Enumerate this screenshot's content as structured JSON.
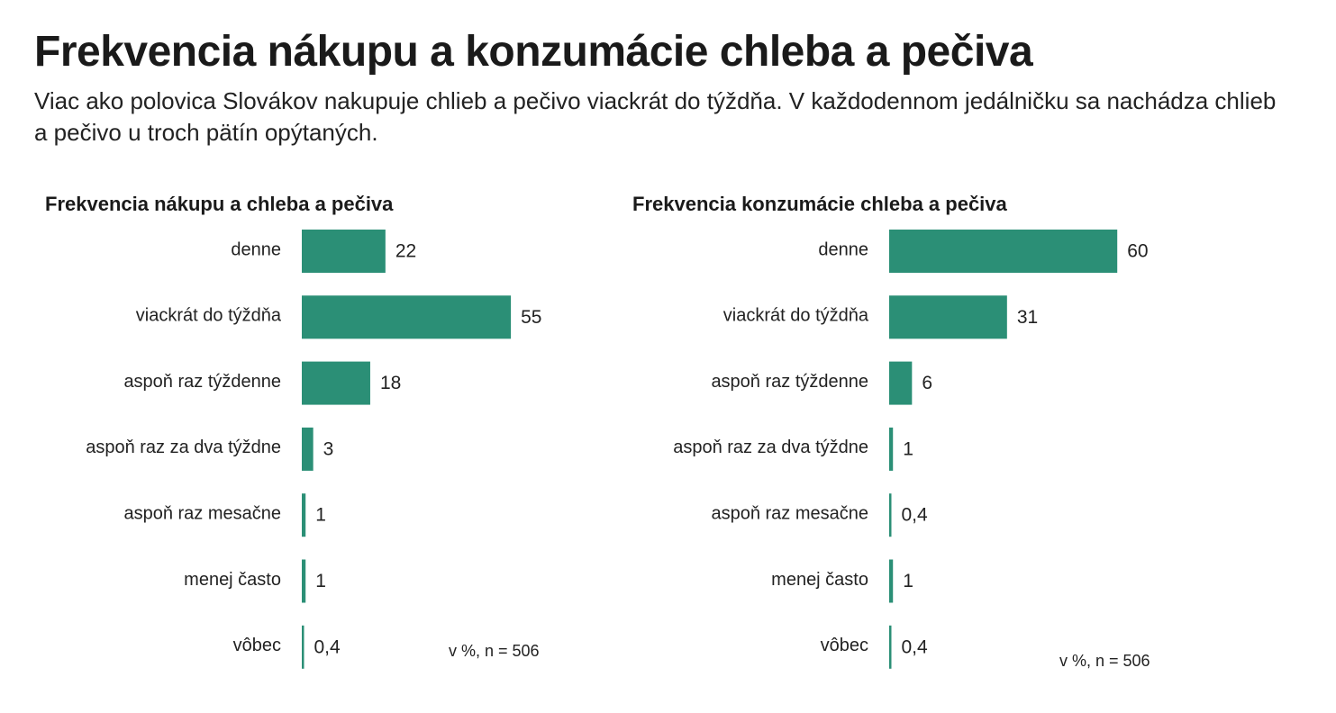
{
  "header": {
    "title": "Frekvencia nákupu a konzumácie chleba a pečiva",
    "subtitle": "Viac ako polovica Slovákov nakupuje chlieb a pečivo viackrát do týždňa. V každodennom jedálničku sa nachádza chlieb a pečivo u troch pätín opýtaných."
  },
  "colors": {
    "bar": "#2b8f76"
  },
  "chart_data": [
    {
      "type": "bar",
      "orientation": "horizontal",
      "title": "Frekvencia nákupu a chleba a pečiva",
      "categories": [
        "denne",
        "viackrát do týždňa",
        "aspoň raz týždenne",
        "aspoň raz za dva týždne",
        "aspoň raz mesačne",
        "menej často",
        "vôbec"
      ],
      "values": [
        22,
        55,
        18,
        3,
        1,
        1,
        0.4
      ],
      "value_labels": [
        "22",
        "55",
        "18",
        "3",
        "1",
        "1",
        "0,4"
      ],
      "note": "v %, n = 506",
      "xlim": [
        0,
        60
      ]
    },
    {
      "type": "bar",
      "orientation": "horizontal",
      "title": "Frekvencia konzumácie chleba a pečiva",
      "categories": [
        "denne",
        "viackrát do týždňa",
        "aspoň raz týždenne",
        "aspoň raz za dva týždne",
        "aspoň raz mesačne",
        "menej často",
        "vôbec"
      ],
      "values": [
        60,
        31,
        6,
        1,
        0.4,
        1,
        0.4
      ],
      "value_labels": [
        "60",
        "31",
        "6",
        "1",
        "0,4",
        "1",
        "0,4"
      ],
      "note": "v %, n = 506",
      "xlim": [
        0,
        60
      ]
    }
  ]
}
